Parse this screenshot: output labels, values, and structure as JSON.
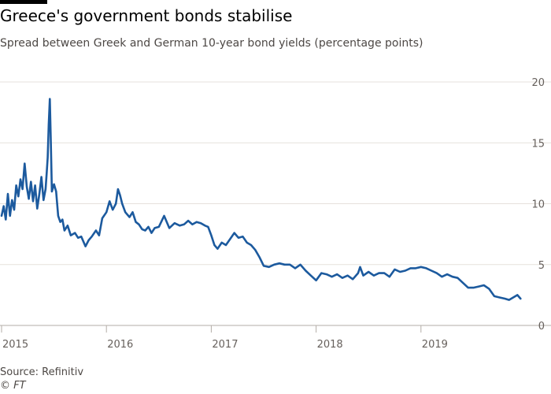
{
  "header": {
    "title": "Greece's government bonds stabilise",
    "subtitle": "Spread between Greek and German 10-year bond yields (percentage points)"
  },
  "footer": {
    "source": "Source: Refinitiv",
    "copyright": "© FT"
  },
  "colors": {
    "line": "#1c5a9e",
    "grid": "#e6e1dc",
    "axis": "#b3ada7",
    "tick_text": "#66605c",
    "background": "#ffffff"
  },
  "chart_data": {
    "type": "line",
    "title": "Greece's government bonds stabilise",
    "subtitle": "Spread between Greek and German 10-year bond yields (percentage points)",
    "xlabel": "",
    "ylabel": "",
    "ylim": [
      0,
      20
    ],
    "xlim": [
      2015.0,
      2020.0
    ],
    "y_ticks": [
      {
        "value": 0,
        "label": "0"
      },
      {
        "value": 5,
        "label": "5"
      },
      {
        "value": 10,
        "label": "10"
      },
      {
        "value": 15,
        "label": "15"
      },
      {
        "value": 20,
        "label": "20"
      }
    ],
    "x_ticks": [
      {
        "value": 2015,
        "label": "2015"
      },
      {
        "value": 2016,
        "label": "2016"
      },
      {
        "value": 2017,
        "label": "2017"
      },
      {
        "value": 2018,
        "label": "2018"
      },
      {
        "value": 2019,
        "label": "2019"
      }
    ],
    "grid": true,
    "y_axis_side": "right",
    "legend": "none",
    "series": [
      {
        "x": [
          2015.0,
          2015.02,
          2015.04,
          2015.06,
          2015.08,
          2015.1,
          2015.12,
          2015.14,
          2015.16,
          2015.18,
          2015.2,
          2015.22,
          2015.24,
          2015.26,
          2015.28,
          2015.3,
          2015.32,
          2015.34,
          2015.36,
          2015.38,
          2015.4,
          2015.42,
          2015.43,
          2015.44,
          2015.45,
          2015.46,
          2015.47,
          2015.48,
          2015.5,
          2015.52,
          2015.54,
          2015.56,
          2015.58,
          2015.6,
          2015.63,
          2015.66,
          2015.7,
          2015.73,
          2015.76,
          2015.8,
          2015.83,
          2015.86,
          2015.9,
          2015.93,
          2015.96,
          2016.0,
          2016.03,
          2016.06,
          2016.09,
          2016.11,
          2016.13,
          2016.15,
          2016.18,
          2016.22,
          2016.25,
          2016.28,
          2016.31,
          2016.34,
          2016.37,
          2016.4,
          2016.43,
          2016.46,
          2016.5,
          2016.55,
          2016.6,
          2016.65,
          2016.7,
          2016.74,
          2016.78,
          2016.82,
          2016.86,
          2016.9,
          2016.94,
          2016.97,
          2017.0,
          2017.03,
          2017.06,
          2017.1,
          2017.14,
          2017.18,
          2017.22,
          2017.26,
          2017.3,
          2017.34,
          2017.38,
          2017.42,
          2017.46,
          2017.5,
          2017.55,
          2017.6,
          2017.65,
          2017.7,
          2017.75,
          2017.8,
          2017.85,
          2017.9,
          2017.95,
          2018.0,
          2018.05,
          2018.1,
          2018.15,
          2018.2,
          2018.25,
          2018.3,
          2018.35,
          2018.4,
          2018.42,
          2018.45,
          2018.5,
          2018.55,
          2018.6,
          2018.65,
          2018.7,
          2018.75,
          2018.8,
          2018.85,
          2018.9,
          2018.95,
          2019.0,
          2019.05,
          2019.1,
          2019.15,
          2019.2,
          2019.25,
          2019.3,
          2019.35,
          2019.4,
          2019.45,
          2019.5,
          2019.55,
          2019.6,
          2019.65,
          2019.7,
          2019.75,
          2019.8,
          2019.84,
          2019.88,
          2019.92,
          2019.95
        ],
        "values": [
          9.0,
          9.8,
          8.7,
          10.8,
          9.0,
          10.3,
          9.5,
          11.5,
          10.6,
          12.0,
          11.2,
          13.3,
          11.4,
          10.4,
          11.8,
          10.2,
          11.5,
          9.6,
          10.8,
          12.2,
          10.3,
          11.2,
          12.5,
          13.8,
          16.5,
          18.6,
          15.0,
          11.0,
          11.6,
          11.0,
          9.0,
          8.5,
          8.7,
          7.8,
          8.2,
          7.4,
          7.6,
          7.2,
          7.3,
          6.5,
          7.0,
          7.3,
          7.8,
          7.4,
          8.8,
          9.3,
          10.2,
          9.5,
          10.0,
          11.2,
          10.7,
          10.0,
          9.3,
          8.9,
          9.3,
          8.5,
          8.3,
          7.9,
          7.8,
          8.1,
          7.6,
          8.0,
          8.1,
          9.0,
          8.0,
          8.4,
          8.2,
          8.3,
          8.6,
          8.3,
          8.5,
          8.4,
          8.2,
          8.1,
          7.4,
          6.6,
          6.3,
          6.8,
          6.6,
          7.1,
          7.6,
          7.2,
          7.3,
          6.8,
          6.6,
          6.2,
          5.6,
          4.9,
          4.8,
          5.0,
          5.1,
          5.0,
          5.0,
          4.7,
          5.0,
          4.5,
          4.1,
          3.7,
          4.3,
          4.2,
          4.0,
          4.2,
          3.9,
          4.1,
          3.8,
          4.3,
          4.8,
          4.1,
          4.4,
          4.1,
          4.3,
          4.3,
          4.0,
          4.6,
          4.4,
          4.5,
          4.7,
          4.7,
          4.8,
          4.7,
          4.5,
          4.3,
          4.0,
          4.2,
          4.0,
          3.9,
          3.5,
          3.1,
          3.1,
          3.2,
          3.3,
          3.0,
          2.4,
          2.3,
          2.2,
          2.1,
          2.3,
          2.5,
          2.2
        ]
      }
    ]
  }
}
